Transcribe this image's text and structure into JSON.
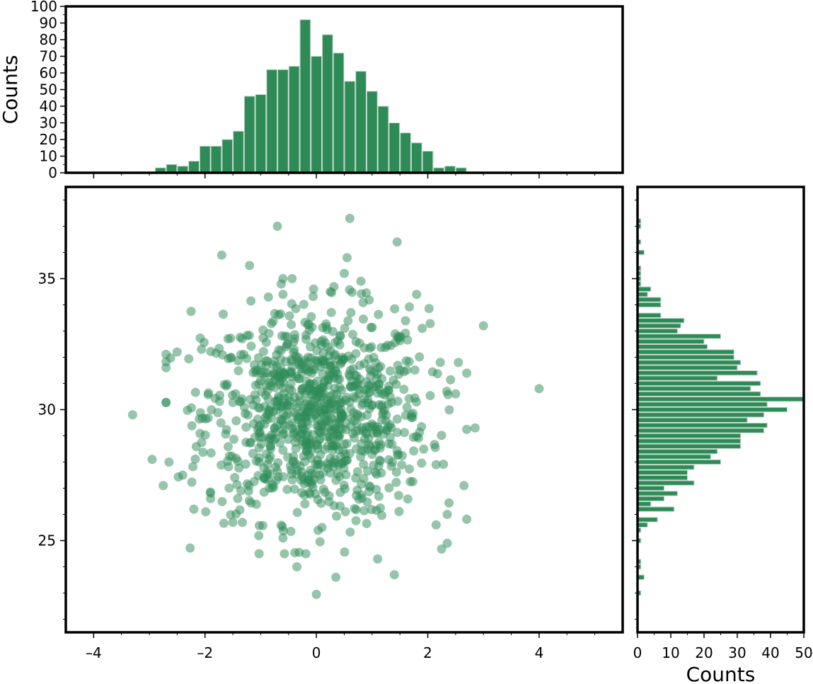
{
  "colors": {
    "bar_fill": "#2e8b57",
    "bar_edge": "#c6d9cc",
    "point_fill": "#2e8b57",
    "frame": "#000000",
    "background": "#ffffff"
  },
  "chart_data": [
    {
      "type": "bar",
      "id": "top-histogram",
      "title": "",
      "xlabel": "",
      "ylabel": "Counts",
      "xlim": [
        -4.5,
        5.5
      ],
      "ylim": [
        0,
        100
      ],
      "yticks": [
        0,
        10,
        20,
        30,
        40,
        50,
        60,
        70,
        80,
        90,
        100
      ],
      "ytick_labels": [
        "0",
        "10",
        "20",
        "30",
        "40",
        "50",
        "60",
        "70",
        "80",
        "90",
        "100"
      ],
      "bin_width": 0.2,
      "bin_starts": [
        -2.9,
        -2.7,
        -2.5,
        -2.3,
        -2.1,
        -1.9,
        -1.7,
        -1.5,
        -1.3,
        -1.1,
        -0.9,
        -0.7,
        -0.5,
        -0.3,
        -0.1,
        0.1,
        0.3,
        0.5,
        0.7,
        0.9,
        1.1,
        1.3,
        1.5,
        1.7,
        1.9,
        2.1,
        2.3,
        2.5
      ],
      "counts": [
        3,
        5,
        4,
        7,
        16,
        16,
        20,
        25,
        46,
        47,
        62,
        62,
        64,
        92,
        70,
        83,
        72,
        55,
        61,
        49,
        40,
        30,
        24,
        18,
        13,
        3,
        4,
        3
      ]
    },
    {
      "type": "scatter",
      "id": "main-scatter",
      "title": "",
      "xlabel": "",
      "ylabel": "",
      "xlim": [
        -4.5,
        5.5
      ],
      "ylim": [
        21.5,
        38.5
      ],
      "xticks": [
        -4,
        -2,
        0,
        2,
        4
      ],
      "xtick_labels": [
        "–4",
        "–2",
        "0",
        "2",
        "4"
      ],
      "yticks": [
        25,
        30,
        35
      ],
      "ytick_labels": [
        "25",
        "30",
        "35"
      ],
      "x_minor_step": 0.5,
      "y_minor_step": 1,
      "marker": "circle",
      "alpha": 0.5,
      "n_points": 1000,
      "distribution": "normal",
      "x_mean": 0.0,
      "x_std": 1.0,
      "y_mean": 29.8,
      "y_std": 2.0,
      "points_shown": [
        [
          -0.7,
          37.0
        ],
        [
          0.6,
          37.3
        ],
        [
          1.45,
          36.4
        ],
        [
          -1.7,
          35.9
        ],
        [
          0.55,
          35.8
        ],
        [
          -1.2,
          35.5
        ],
        [
          0.5,
          35.2
        ],
        [
          -0.6,
          35.0
        ],
        [
          0.8,
          34.9
        ],
        [
          -0.05,
          34.6
        ],
        [
          0.25,
          34.5
        ],
        [
          -0.6,
          34.4
        ],
        [
          1.8,
          34.4
        ],
        [
          -2.25,
          33.75
        ],
        [
          -3.3,
          29.8
        ],
        [
          4.0,
          30.8
        ],
        [
          3.0,
          33.2
        ],
        [
          2.85,
          29.3
        ],
        [
          -2.95,
          28.1
        ],
        [
          -2.75,
          27.1
        ],
        [
          2.65,
          27.1
        ],
        [
          2.35,
          26.0
        ],
        [
          2.35,
          24.9
        ],
        [
          -2.2,
          26.2
        ],
        [
          -0.35,
          24.0
        ],
        [
          1.1,
          24.3
        ],
        [
          1.4,
          23.7
        ],
        [
          0.35,
          23.6
        ],
        [
          0.0,
          22.95
        ],
        [
          -0.6,
          25.1
        ],
        [
          0.1,
          25.5
        ],
        [
          -1.5,
          25.7
        ],
        [
          2.55,
          31.8
        ],
        [
          2.5,
          30.6
        ],
        [
          -2.7,
          31.6
        ],
        [
          -2.5,
          32.2
        ],
        [
          1.9,
          33.1
        ],
        [
          -2.4,
          27.5
        ],
        [
          -1.9,
          26.6
        ],
        [
          2.15,
          25.6
        ]
      ]
    },
    {
      "type": "bar",
      "orientation": "horizontal",
      "id": "right-histogram",
      "title": "",
      "xlabel": "Counts",
      "ylabel": "",
      "xlim": [
        0,
        50
      ],
      "ylim": [
        21.5,
        38.5
      ],
      "xticks": [
        0,
        10,
        20,
        30,
        40,
        50
      ],
      "xtick_labels": [
        "0",
        "10",
        "20",
        "30",
        "40",
        "50"
      ],
      "bin_width": 0.2,
      "bins": [
        [
          22.9,
          1
        ],
        [
          23.5,
          2
        ],
        [
          23.9,
          1
        ],
        [
          24.1,
          1
        ],
        [
          24.9,
          1
        ],
        [
          25.3,
          1
        ],
        [
          25.5,
          3
        ],
        [
          25.7,
          6
        ],
        [
          26.1,
          11
        ],
        [
          26.3,
          4
        ],
        [
          26.5,
          8
        ],
        [
          26.7,
          12
        ],
        [
          26.9,
          8
        ],
        [
          27.1,
          17
        ],
        [
          27.3,
          15
        ],
        [
          27.5,
          15
        ],
        [
          27.7,
          17
        ],
        [
          27.9,
          25
        ],
        [
          28.1,
          22
        ],
        [
          28.3,
          24
        ],
        [
          28.5,
          31
        ],
        [
          28.7,
          31
        ],
        [
          28.9,
          31
        ],
        [
          29.1,
          38
        ],
        [
          29.3,
          39
        ],
        [
          29.5,
          33
        ],
        [
          29.7,
          38
        ],
        [
          29.9,
          45
        ],
        [
          30.1,
          39
        ],
        [
          30.3,
          50
        ],
        [
          30.5,
          37
        ],
        [
          30.7,
          34
        ],
        [
          30.9,
          37
        ],
        [
          31.1,
          24
        ],
        [
          31.3,
          36
        ],
        [
          31.5,
          30
        ],
        [
          31.7,
          31
        ],
        [
          31.9,
          29
        ],
        [
          32.1,
          29
        ],
        [
          32.3,
          21
        ],
        [
          32.5,
          20
        ],
        [
          32.7,
          25
        ],
        [
          32.9,
          12
        ],
        [
          33.1,
          13
        ],
        [
          33.3,
          14
        ],
        [
          33.5,
          7
        ],
        [
          33.9,
          7
        ],
        [
          34.1,
          7
        ],
        [
          34.3,
          3
        ],
        [
          34.5,
          4
        ],
        [
          34.7,
          1
        ],
        [
          34.9,
          1
        ],
        [
          35.1,
          1
        ],
        [
          35.3,
          1
        ],
        [
          35.9,
          2
        ],
        [
          36.3,
          1
        ],
        [
          36.9,
          1
        ],
        [
          37.1,
          1
        ]
      ]
    }
  ]
}
